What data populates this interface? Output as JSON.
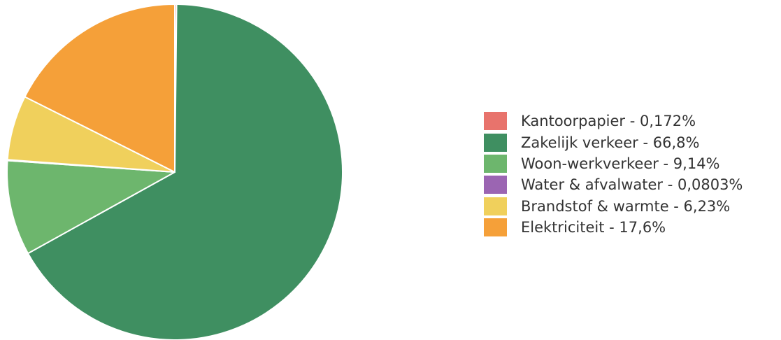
{
  "chart_data": {
    "type": "pie",
    "title": "",
    "slices": [
      {
        "label": "Kantoorpapier - 0,172%",
        "name": "Kantoorpapier",
        "value": 0.172,
        "color": "#e8736c"
      },
      {
        "label": "Zakelijk verkeer - 66,8%",
        "name": "Zakelijk verkeer",
        "value": 66.8,
        "color": "#3f8f61"
      },
      {
        "label": "Woon-werkverkeer - 9,14%",
        "name": "Woon-werkverkeer",
        "value": 9.14,
        "color": "#6db66d"
      },
      {
        "label": "Water & afvalwater - 0,0803%",
        "name": "Water & afvalwater",
        "value": 0.0803,
        "color": "#9b65b2"
      },
      {
        "label": "Brandstof & warmte - 6,23%",
        "name": "Brandstof & warmte",
        "value": 6.23,
        "color": "#f0d05c"
      },
      {
        "label": "Elektriciteit - 17,6%",
        "name": "Elektriciteit",
        "value": 17.6,
        "color": "#f5a039"
      }
    ],
    "legend_position": "right",
    "start_angle": "top",
    "direction": "clockwise"
  }
}
